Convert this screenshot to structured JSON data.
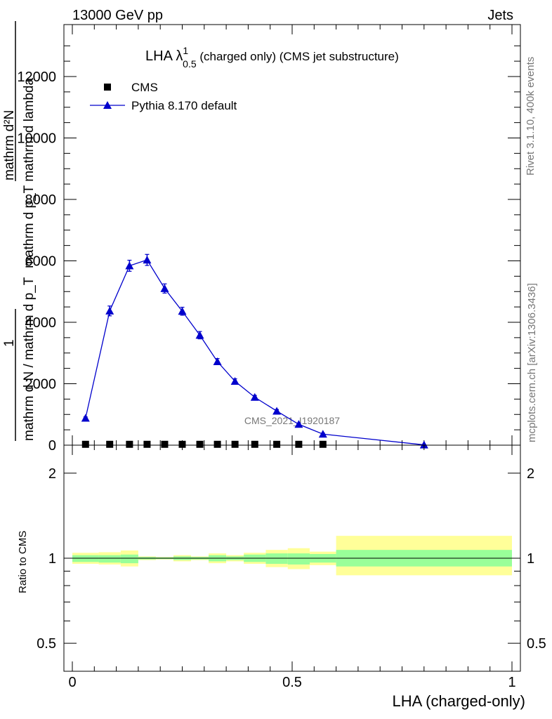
{
  "header": {
    "energy_label": "13000 GeV pp",
    "process_label": "Jets",
    "rivet_label": "Rivet 3.1.10,  400k events",
    "mcplots_label": "mcplots.cern.ch [arXiv:1306.3436]"
  },
  "chart_data": [
    {
      "type": "scatter",
      "panel": "main",
      "title_main": "LHA λ",
      "title_sup": "1",
      "title_sub": "0.5",
      "title_rest": " (charged only) (CMS jet substructure)",
      "ylabel_numerator": "mathrm d²N",
      "ylabel_denominator": "mathrm d p_T mathrm d lambda",
      "ylabel_line1": "1",
      "ylabel_line2": "mathrm d N / mathrm d p_T",
      "watermark": "CMS_2021_I1920187",
      "xlim": [
        0,
        1
      ],
      "ylim": [
        0,
        13000
      ],
      "yticks": [
        0,
        2000,
        4000,
        6000,
        8000,
        10000,
        12000
      ],
      "ytick_labels": [
        "0",
        "2000",
        "4000",
        "6000",
        "8000",
        "10000",
        "12000"
      ],
      "legend_placement": "top-left",
      "series": [
        {
          "name": "CMS",
          "color": "#000000",
          "marker": "square",
          "x": [
            0.03,
            0.085,
            0.13,
            0.17,
            0.21,
            0.25,
            0.29,
            0.33,
            0.37,
            0.415,
            0.465,
            0.515,
            0.57
          ],
          "y": [
            5,
            5,
            5,
            5,
            5,
            5,
            5,
            5,
            5,
            5,
            5,
            5,
            5
          ]
        },
        {
          "name": "Pythia 8.170 default",
          "color": "#0000cc",
          "marker": "triangle",
          "x": [
            0.03,
            0.085,
            0.13,
            0.17,
            0.21,
            0.25,
            0.29,
            0.33,
            0.37,
            0.415,
            0.465,
            0.515,
            0.57,
            0.8
          ],
          "y": [
            880,
            4370,
            5840,
            6030,
            5100,
            4360,
            3580,
            2720,
            2080,
            1560,
            1110,
            680,
            360,
            10
          ],
          "yerr": [
            40,
            160,
            180,
            180,
            150,
            130,
            120,
            100,
            80,
            60,
            50,
            40,
            30,
            5
          ]
        }
      ]
    },
    {
      "type": "area",
      "panel": "ratio",
      "ylabel": "Ratio to CMS",
      "xlabel": "LHA (charged-only)",
      "xlim": [
        0,
        1
      ],
      "ylim": [
        0.4,
        2.3
      ],
      "log_y": true,
      "yticks": [
        0.5,
        1,
        2
      ],
      "ytick_labels": [
        "0.5",
        "1",
        "2"
      ],
      "xticks": [
        0,
        0.5,
        1
      ],
      "xtick_labels": [
        "0",
        "0.5",
        "1"
      ],
      "reference_line": 1,
      "band_colors": {
        "outer": "#ffff99",
        "inner": "#99ff99"
      },
      "bins": [
        {
          "xlo": 0.0,
          "xhi": 0.06,
          "outer": [
            0.955,
            1.045
          ],
          "inner": [
            0.97,
            1.025
          ]
        },
        {
          "xlo": 0.06,
          "xhi": 0.11,
          "outer": [
            0.95,
            1.05
          ],
          "inner": [
            0.965,
            1.025
          ]
        },
        {
          "xlo": 0.11,
          "xhi": 0.15,
          "outer": [
            0.935,
            1.065
          ],
          "inner": [
            0.96,
            1.03
          ]
        },
        {
          "xlo": 0.15,
          "xhi": 0.19,
          "outer": [
            0.985,
            1.015
          ],
          "inner": [
            0.99,
            1.01
          ]
        },
        {
          "xlo": 0.19,
          "xhi": 0.23,
          "outer": [
            0.99,
            1.01
          ],
          "inner": [
            0.993,
            1.007
          ]
        },
        {
          "xlo": 0.23,
          "xhi": 0.27,
          "outer": [
            0.975,
            1.025
          ],
          "inner": [
            0.985,
            1.015
          ]
        },
        {
          "xlo": 0.27,
          "xhi": 0.31,
          "outer": [
            0.985,
            1.015
          ],
          "inner": [
            0.99,
            1.01
          ]
        },
        {
          "xlo": 0.31,
          "xhi": 0.35,
          "outer": [
            0.96,
            1.04
          ],
          "inner": [
            0.975,
            1.025
          ]
        },
        {
          "xlo": 0.35,
          "xhi": 0.39,
          "outer": [
            0.975,
            1.025
          ],
          "inner": [
            0.985,
            1.015
          ]
        },
        {
          "xlo": 0.39,
          "xhi": 0.44,
          "outer": [
            0.955,
            1.045
          ],
          "inner": [
            0.97,
            1.03
          ]
        },
        {
          "xlo": 0.44,
          "xhi": 0.49,
          "outer": [
            0.93,
            1.07
          ],
          "inner": [
            0.955,
            1.04
          ]
        },
        {
          "xlo": 0.49,
          "xhi": 0.54,
          "outer": [
            0.915,
            1.085
          ],
          "inner": [
            0.95,
            1.04
          ]
        },
        {
          "xlo": 0.54,
          "xhi": 0.6,
          "outer": [
            0.945,
            1.055
          ],
          "inner": [
            0.965,
            1.035
          ]
        },
        {
          "xlo": 0.6,
          "xhi": 1.0,
          "outer": [
            0.87,
            1.2
          ],
          "inner": [
            0.935,
            1.07
          ]
        }
      ]
    }
  ]
}
